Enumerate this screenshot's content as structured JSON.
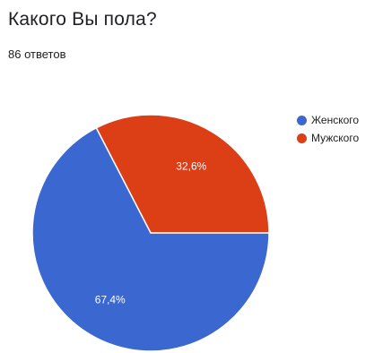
{
  "question": {
    "title": "Какого Вы пола?",
    "responses": "86 ответов"
  },
  "colors": {
    "series_1": "#3b67d1",
    "series_2": "#dc3e16"
  },
  "chart_data": {
    "type": "pie",
    "categories": [
      "Женского",
      "Мужского"
    ],
    "values": [
      67.4,
      32.6
    ],
    "labels": [
      "67,4%",
      "32,6%"
    ],
    "colors": [
      "#3b67d1",
      "#dc3e16"
    ],
    "start_angle_deg": 0,
    "direction": "counterclockwise-from-right-for-series-2",
    "legend_position": "right",
    "title": ""
  }
}
